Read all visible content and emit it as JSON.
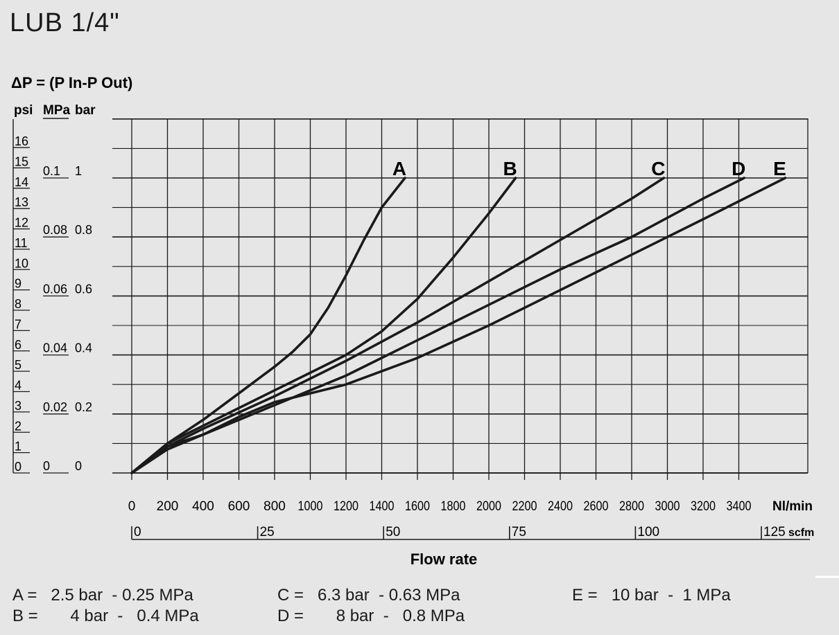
{
  "title": "LUB 1/4\"",
  "chart_data": {
    "type": "line",
    "ylabel": "ΔP = (P In-P Out)",
    "xlabel": "Flow rate",
    "y_units": {
      "psi": "psi",
      "mpa": "MPa",
      "bar": "bar"
    },
    "x_unit_primary": "Nl/min",
    "x_unit_secondary": "scfm",
    "xlim": [
      0,
      3800
    ],
    "ylim_bar": [
      0,
      1.2
    ],
    "grid": true,
    "x_ticks": [
      0,
      200,
      400,
      600,
      800,
      1000,
      1200,
      1400,
      1600,
      1800,
      2000,
      2200,
      2400,
      2600,
      2800,
      3000,
      3200,
      3400
    ],
    "x_tick_labels": [
      "0",
      "200",
      "400",
      "600",
      "800",
      "1000",
      "1200",
      "1400",
      "1600",
      "1800",
      "2000",
      "2200",
      "2400",
      "2600",
      "2800",
      "3000",
      "3200",
      "3400"
    ],
    "scfm_ticks": [
      0,
      25,
      50,
      75,
      100,
      125
    ],
    "scfm_tick_labels": [
      "0",
      "25",
      "50",
      "75",
      "100",
      "125"
    ],
    "psi_ticks": [
      0,
      1,
      2,
      3,
      4,
      5,
      6,
      7,
      8,
      9,
      10,
      11,
      12,
      13,
      14,
      15,
      16
    ],
    "psi_tick_labels": [
      "0",
      "1",
      "2",
      "3",
      "4",
      "5",
      "6",
      "7",
      "8",
      "9",
      "10",
      "11",
      "12",
      "13",
      "14",
      "15",
      "16"
    ],
    "bar_ticks": [
      0,
      0.2,
      0.4,
      0.6,
      0.8,
      1
    ],
    "bar_tick_labels": [
      "0",
      "0.2",
      "0.4",
      "0.6",
      "0.8",
      "1"
    ],
    "mpa_tick_labels": [
      "0",
      "0.02",
      "0.04",
      "0.06",
      "0.08",
      "0.1"
    ],
    "series": [
      {
        "name": "A",
        "x": [
          0,
          200,
          400,
          600,
          800,
          900,
          1000,
          1100,
          1200,
          1300,
          1400,
          1530
        ],
        "y": [
          0,
          0.1,
          0.18,
          0.27,
          0.36,
          0.41,
          0.47,
          0.56,
          0.67,
          0.79,
          0.9,
          1.0
        ]
      },
      {
        "name": "B",
        "x": [
          0,
          200,
          400,
          600,
          800,
          1000,
          1200,
          1400,
          1600,
          1800,
          2000,
          2150
        ],
        "y": [
          0,
          0.1,
          0.16,
          0.22,
          0.28,
          0.34,
          0.4,
          0.48,
          0.59,
          0.73,
          0.88,
          1.0
        ]
      },
      {
        "name": "C",
        "x": [
          0,
          200,
          400,
          800,
          1200,
          1600,
          2000,
          2400,
          2800,
          2980
        ],
        "y": [
          0,
          0.09,
          0.15,
          0.26,
          0.38,
          0.51,
          0.65,
          0.79,
          0.93,
          1.0
        ]
      },
      {
        "name": "D",
        "x": [
          0,
          200,
          400,
          600,
          800,
          1200,
          1600,
          2000,
          2400,
          2800,
          3200,
          3430
        ],
        "y": [
          0,
          0.09,
          0.13,
          0.18,
          0.23,
          0.33,
          0.45,
          0.57,
          0.69,
          0.8,
          0.93,
          1.0
        ]
      },
      {
        "name": "E",
        "x": [
          0,
          200,
          400,
          600,
          800,
          1200,
          1600,
          2000,
          2400,
          2800,
          3200,
          3660
        ],
        "y": [
          0,
          0.08,
          0.13,
          0.19,
          0.24,
          0.3,
          0.39,
          0.5,
          0.62,
          0.74,
          0.86,
          1.0
        ]
      }
    ]
  },
  "legend": {
    "A": "A =   2.5 bar  - 0.25 MPa",
    "B": "B =       4 bar  -   0.4 MPa",
    "C": "C =   6.3 bar  - 0.63 MPa",
    "D": "D =       8 bar  -   0.8 MPa",
    "E": "E =   10 bar  -  1 MPa"
  }
}
